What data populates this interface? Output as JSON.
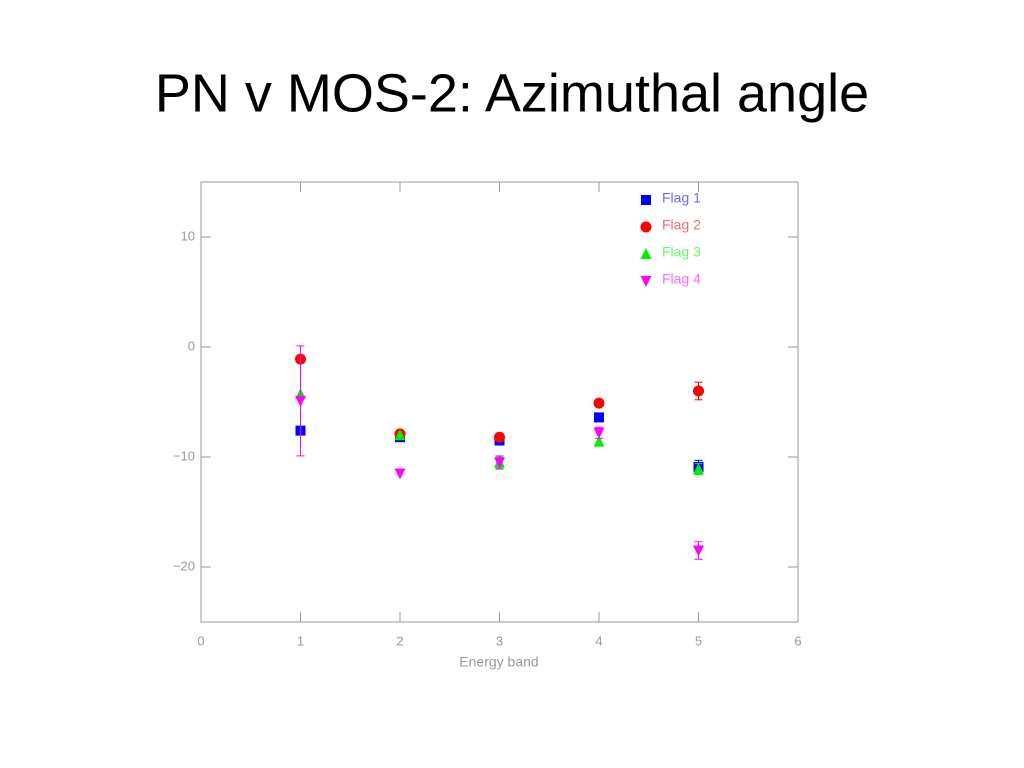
{
  "chart_data": {
    "type": "scatter",
    "title": "PN v MOS-2: Azimuthal angle",
    "x_label": "Energy band",
    "x": [
      1,
      2,
      3,
      4,
      5
    ],
    "xlim": [
      0,
      6
    ],
    "xticks": [
      0,
      1,
      2,
      3,
      4,
      5,
      6
    ],
    "ylim": [
      -25,
      15
    ],
    "yticks": [
      {
        "value": -20,
        "label": "−20"
      },
      {
        "value": -10,
        "label": "−10"
      },
      0,
      10
    ],
    "legend": "top-right",
    "series": [
      {
        "name": "Flag 1",
        "color": "#0000ff",
        "marker": "square",
        "values": [
          -7.6,
          -8.2,
          -8.5,
          -6.4,
          -10.9
        ],
        "errors": [
          null,
          null,
          null,
          null,
          0.6
        ]
      },
      {
        "name": "Flag 2",
        "color": "#ff0000",
        "marker": "circle",
        "values": [
          -1.1,
          -7.9,
          -8.2,
          -5.1,
          -4.0
        ],
        "errors": [
          null,
          null,
          null,
          null,
          0.8
        ]
      },
      {
        "name": "Flag 3",
        "color": "#00ee00",
        "marker": "triangle-up",
        "values": [
          -4.3,
          -8.0,
          -10.5,
          -8.6,
          -11.1
        ],
        "errors": [
          null,
          null,
          0.5,
          null,
          0.5
        ]
      },
      {
        "name": "Flag 4",
        "color": "#ff00ff",
        "marker": "triangle-down",
        "values": [
          -4.9,
          -11.5,
          -10.5,
          -7.8,
          -18.5
        ],
        "errors": [
          5.0,
          null,
          0.6,
          0.5,
          0.8
        ]
      }
    ]
  }
}
